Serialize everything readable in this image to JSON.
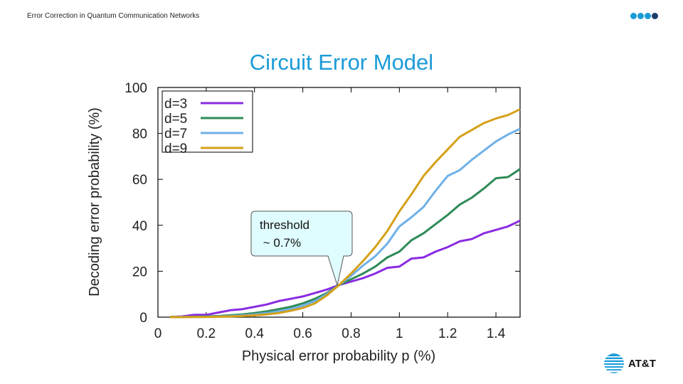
{
  "header": {
    "title": "Error Correction in Quantum Communication Networks"
  },
  "slide": {
    "title": "Circuit Error Model"
  },
  "logo": {
    "text": "AT&T",
    "color": "#1a9bd7"
  },
  "dots_color": "#1a9bd7",
  "chart_data": {
    "type": "line",
    "title": "",
    "xlabel": "Physical error probability p (%)",
    "ylabel": "Decoding error probability (%)",
    "xlim": [
      0,
      1.5
    ],
    "ylim": [
      0,
      100
    ],
    "xticks": [
      0,
      0.2,
      0.4,
      0.6,
      0.8,
      1,
      1.2,
      1.4
    ],
    "xtick_labels": [
      "0",
      "0.2",
      "0.4",
      "0.6",
      "0.8",
      "1",
      "1.2",
      "1.4"
    ],
    "yticks": [
      0,
      20,
      40,
      60,
      80,
      100
    ],
    "ytick_labels": [
      "0",
      "20",
      "40",
      "60",
      "80",
      "100"
    ],
    "legend_position": "top-left",
    "x": [
      0.05,
      0.1,
      0.15,
      0.2,
      0.25,
      0.3,
      0.35,
      0.4,
      0.45,
      0.5,
      0.55,
      0.6,
      0.65,
      0.7,
      0.75,
      0.8,
      0.85,
      0.9,
      0.95,
      1.0,
      1.05,
      1.1,
      1.15,
      1.2,
      1.25,
      1.3,
      1.35,
      1.4,
      1.45,
      1.5
    ],
    "series": [
      {
        "name": "d=3",
        "color": "#8a2be2",
        "values": [
          0.1,
          0.3,
          1,
          1,
          2,
          3,
          3.5,
          4.5,
          5.5,
          7,
          8,
          9,
          10.5,
          12,
          14,
          15.5,
          17,
          19,
          21.5,
          22,
          25.5,
          26,
          28.5,
          30.5,
          33,
          34,
          36.5,
          38,
          39.5,
          42
        ]
      },
      {
        "name": "d=5",
        "color": "#2e8b57",
        "values": [
          0.05,
          0.1,
          0.2,
          0.3,
          0.5,
          0.8,
          1.2,
          1.8,
          2.5,
          3.5,
          4.5,
          6,
          8,
          10.5,
          14,
          16.5,
          19,
          22,
          26,
          28.5,
          33.5,
          36.5,
          40.5,
          44.5,
          49,
          52,
          56,
          60.5,
          61,
          64.5
        ]
      },
      {
        "name": "d=7",
        "color": "#6fb0e8",
        "values": [
          0.03,
          0.05,
          0.1,
          0.15,
          0.3,
          0.5,
          0.8,
          1.2,
          1.8,
          2.5,
          3.5,
          5,
          7,
          10,
          14,
          18,
          22.5,
          26.5,
          32,
          39.5,
          43.5,
          48,
          55,
          61.5,
          64,
          68.5,
          72.5,
          76.5,
          79.5,
          82
        ]
      },
      {
        "name": "d=9",
        "color": "#d4a017",
        "values": [
          0.02,
          0.03,
          0.05,
          0.1,
          0.2,
          0.3,
          0.5,
          0.8,
          1.2,
          1.8,
          2.8,
          4,
          6,
          9.5,
          14,
          19,
          24.5,
          30.5,
          37.5,
          46,
          53.5,
          61.5,
          67.5,
          73,
          78.5,
          81.5,
          84.5,
          86.5,
          88,
          90.5
        ]
      }
    ],
    "annotation": {
      "line1": "threshold",
      "line2": " ~ 0.7%",
      "x": 0.75,
      "y": 14
    }
  }
}
